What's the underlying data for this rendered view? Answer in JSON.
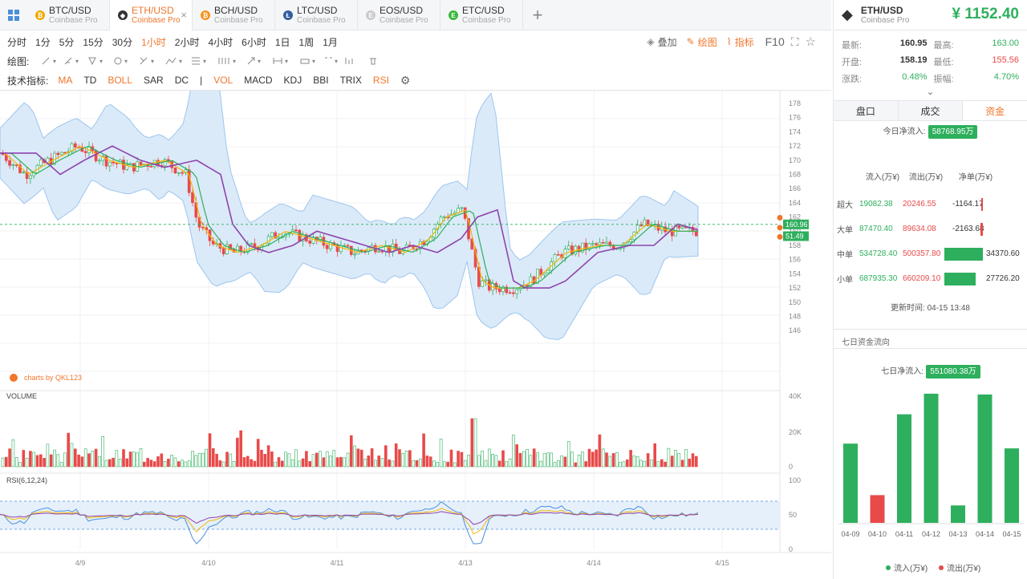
{
  "tabs": [
    {
      "pair": "BTC/USD",
      "exchange": "Coinbase Pro",
      "color": "#f2a900",
      "glyph": "₿"
    },
    {
      "pair": "ETH/USD",
      "exchange": "Coinbase Pro",
      "color": "#333",
      "glyph": "◆"
    },
    {
      "pair": "BCH/USD",
      "exchange": "Coinbase Pro",
      "color": "#f7931a",
      "glyph": "₿"
    },
    {
      "pair": "LTC/USD",
      "exchange": "Coinbase Pro",
      "color": "#345d9d",
      "glyph": "Ł"
    },
    {
      "pair": "EOS/USD",
      "exchange": "Coinbase Pro",
      "color": "#ccc",
      "glyph": "E"
    },
    {
      "pair": "ETC/USD",
      "exchange": "Coinbase Pro",
      "color": "#3ab83a",
      "glyph": "E"
    }
  ],
  "timeframes": [
    "分时",
    "1分",
    "5分",
    "15分",
    "30分",
    "1小时",
    "2小时",
    "4小时",
    "6小时",
    "1日",
    "1周",
    "1月"
  ],
  "active_timeframe": "1小时",
  "top_tools": {
    "overlay": "叠加",
    "draw": "绘图",
    "indicator": "指标",
    "f10": "F10"
  },
  "draw_label": "绘图:",
  "indicators_label": "技术指标:",
  "indicators": [
    {
      "name": "MA",
      "color": "#f0762b"
    },
    {
      "name": "TD",
      "color": "#333"
    },
    {
      "name": "BOLL",
      "color": "#f0762b"
    },
    {
      "name": "SAR",
      "color": "#333"
    },
    {
      "name": "DC",
      "color": "#333"
    },
    {
      "name": "|",
      "color": "#333"
    },
    {
      "name": "VOL",
      "color": "#f0762b"
    },
    {
      "name": "MACD",
      "color": "#333"
    },
    {
      "name": "KDJ",
      "color": "#333"
    },
    {
      "name": "BBI",
      "color": "#333"
    },
    {
      "name": "TRIX",
      "color": "#333"
    },
    {
      "name": "RSI",
      "color": "#f0762b"
    }
  ],
  "chart": {
    "y_ticks": [
      "178",
      "176",
      "174",
      "172",
      "170",
      "168",
      "166",
      "164",
      "162",
      "160",
      "158",
      "156",
      "154",
      "152",
      "150",
      "148",
      "146"
    ],
    "price_label": "160.96",
    "secondary_label": "51.49",
    "watermark": "charts by QKL123",
    "volume_title": "VOLUME",
    "volume_ticks": [
      "40K",
      "20K",
      "0"
    ],
    "rsi_title": "RSI(6,12,24)",
    "rsi_ticks": [
      "100",
      "50",
      "0"
    ],
    "x_ticks": [
      "4/9",
      "4/10",
      "4/11",
      "4/13",
      "4/14",
      "4/15"
    ]
  },
  "ticker": {
    "pair": "ETH/USD",
    "exchange": "Coinbase Pro",
    "price": "¥ 1152.40"
  },
  "stats": [
    {
      "label": "最新:",
      "value": "160.95",
      "color": "#333"
    },
    {
      "label": "最高:",
      "value": "163.00",
      "color": "#2eaf5d"
    },
    {
      "label": "开盘:",
      "value": "158.19",
      "color": "#333"
    },
    {
      "label": "最低:",
      "value": "155.56",
      "color": "#e84a4a"
    },
    {
      "label": "涨跌:",
      "value": "0.48%",
      "color": "#2eaf5d"
    },
    {
      "label": "振幅:",
      "value": "4.70%",
      "color": "#2eaf5d"
    }
  ],
  "side_tabs": [
    "盘口",
    "成交",
    "资金"
  ],
  "today_flow": {
    "label": "今日净流入:",
    "value": "58768.95万"
  },
  "flow_headers": [
    "流入(万¥)",
    "流出(万¥)",
    "净单(万¥)"
  ],
  "flow_rows": [
    {
      "name": "超大",
      "in": "19082.38",
      "out": "20246.55",
      "net": "-1164.17",
      "ratio": 0.04,
      "positive": false
    },
    {
      "name": "大单",
      "in": "87470.40",
      "out": "89634.08",
      "net": "-2163.68",
      "ratio": 0.06,
      "positive": false
    },
    {
      "name": "中单",
      "in": "534728.40",
      "out": "500357.80",
      "net": "34370.60",
      "ratio": 1.0,
      "positive": true
    },
    {
      "name": "小单",
      "in": "687935.30",
      "out": "660209.10",
      "net": "27726.20",
      "ratio": 0.81,
      "positive": true
    }
  ],
  "update_time": "更新时间: 04-15 13:48",
  "seven_day": {
    "title": "七日资金流向",
    "label": "七日净流入:",
    "value": "551080.38万",
    "legend_in": "流入(万¥)",
    "legend_out": "流出(万¥)"
  },
  "colors": {
    "accent": "#f0762b",
    "up": "#2eaf5d",
    "down": "#e84a4a"
  },
  "chart_data": {
    "type": "bar",
    "title": "七日资金流向",
    "categories": [
      "04-09",
      "04-10",
      "04-11",
      "04-12",
      "04-13",
      "04-14",
      "04-15"
    ],
    "values": [
      100,
      35,
      137,
      163,
      22,
      162,
      94
    ],
    "positive": [
      true,
      false,
      true,
      true,
      true,
      true,
      true
    ]
  }
}
